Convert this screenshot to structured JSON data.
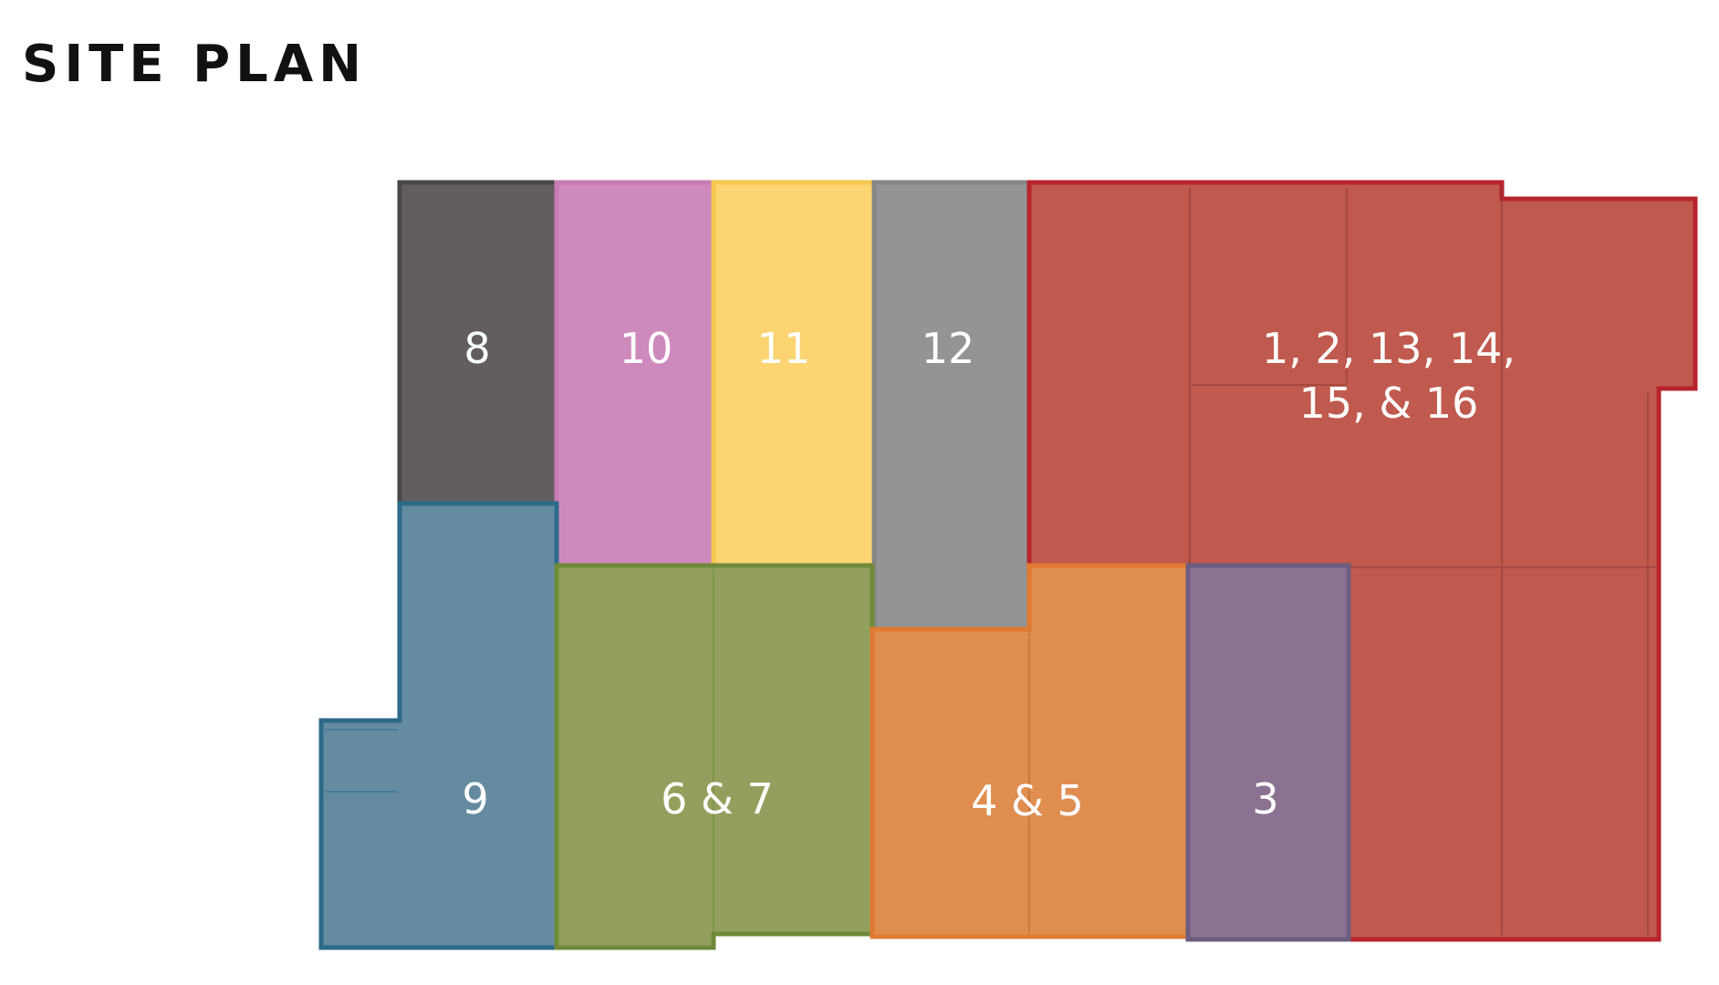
{
  "title": "SITE PLAN",
  "units": [
    {
      "id": "u8",
      "label": "8",
      "fill": "#625e5f",
      "stroke": "#4a4748"
    },
    {
      "id": "u10",
      "label": "10",
      "fill": "#cf8abd",
      "stroke": "#c77bb3"
    },
    {
      "id": "u11",
      "label": "11",
      "fill": "#fcd472",
      "stroke": "#f5c750"
    },
    {
      "id": "u12",
      "label": "12",
      "fill": "#949494",
      "stroke": "#868686"
    },
    {
      "id": "u1",
      "label_lines": [
        "1, 2, 13, 14,",
        "15, & 16"
      ],
      "fill": "#c0594e",
      "stroke": "#b8242c"
    },
    {
      "id": "u9",
      "label": "9",
      "fill": "#648ba0",
      "stroke": "#2c6a8a"
    },
    {
      "id": "u67",
      "label": "6 & 7",
      "fill": "#93a05d",
      "stroke": "#6f8a3a"
    },
    {
      "id": "u45",
      "label": "4 & 5",
      "fill": "#e08d50",
      "stroke": "#e07a30"
    },
    {
      "id": "u3",
      "label": "3",
      "fill": "#8b7292",
      "stroke": "#6d5d80"
    }
  ]
}
